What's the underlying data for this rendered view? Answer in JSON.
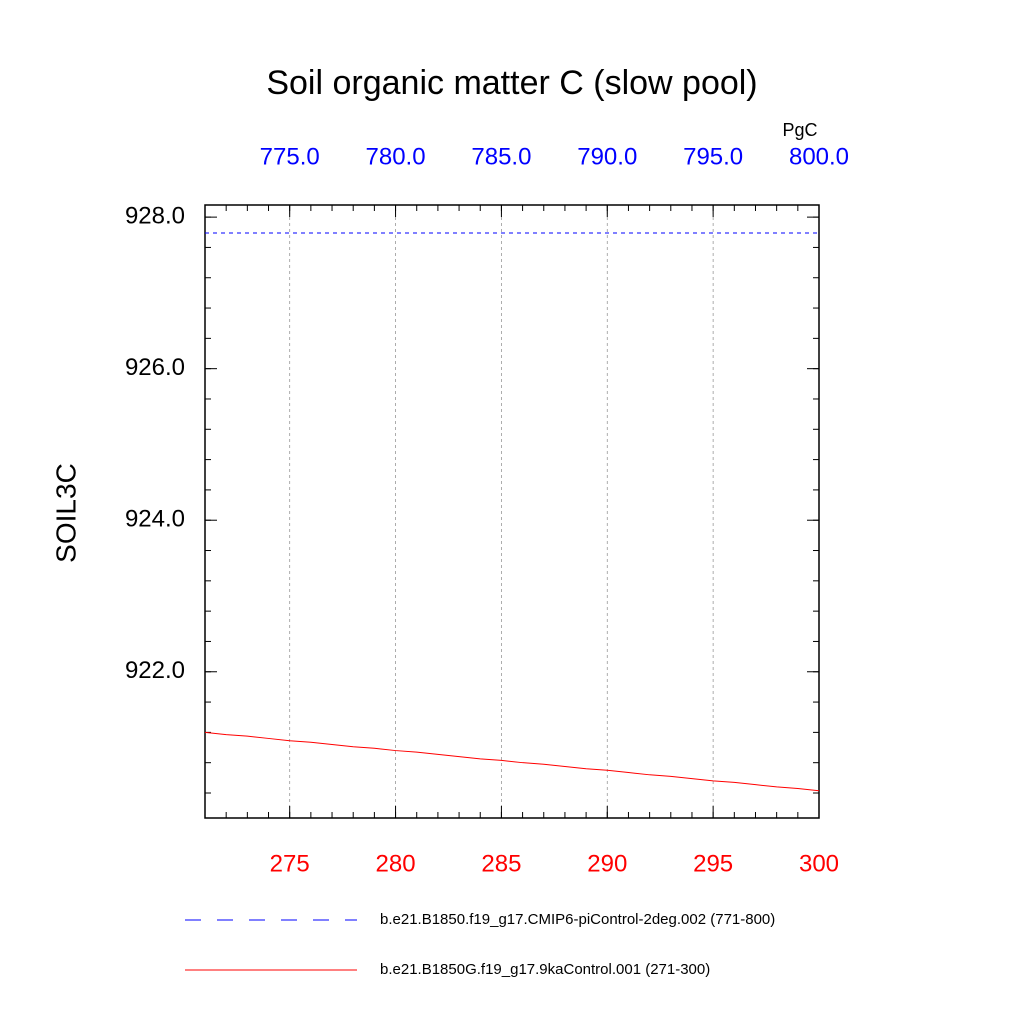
{
  "chart_data": {
    "type": "line",
    "title": "Soil organic matter C (slow pool)",
    "units": "PgC",
    "ylabel": "SOIL3C",
    "xlim": [
      271,
      300
    ],
    "xticks": [
      275,
      280,
      285,
      290,
      295,
      300
    ],
    "xtick_color": "#ff0000",
    "x2lim": [
      771,
      800
    ],
    "x2ticks": [
      {
        "value": 775,
        "label": "775.0"
      },
      {
        "value": 780,
        "label": "780.0"
      },
      {
        "value": 785,
        "label": "785.0"
      },
      {
        "value": 790,
        "label": "790.0"
      },
      {
        "value": 795,
        "label": "795.0"
      },
      {
        "value": 800,
        "label": "800.0"
      }
    ],
    "x2tick_color": "#0000ff",
    "ylim": [
      920.07,
      928.16
    ],
    "yticks": [
      {
        "value": 922,
        "label": "922.0"
      },
      {
        "value": 924,
        "label": "924.0"
      },
      {
        "value": 926,
        "label": "926.0"
      },
      {
        "value": 928,
        "label": "928.0"
      }
    ],
    "grid": true,
    "series": [
      {
        "name": "b.e21.B1850.f19_g17.CMIP6-piControl-2deg.002 (771-800)",
        "color": "#0000ff",
        "dashed": true,
        "axis": "x2",
        "x": [
          771,
          772,
          773,
          774,
          775,
          776,
          777,
          778,
          779,
          780,
          781,
          782,
          783,
          784,
          785,
          786,
          787,
          788,
          789,
          790,
          791,
          792,
          793,
          794,
          795,
          796,
          797,
          798,
          799,
          800
        ],
        "values": [
          927.79,
          927.79,
          927.79,
          927.79,
          927.79,
          927.79,
          927.79,
          927.79,
          927.79,
          927.79,
          927.79,
          927.79,
          927.79,
          927.79,
          927.79,
          927.79,
          927.79,
          927.79,
          927.79,
          927.79,
          927.79,
          927.79,
          927.79,
          927.79,
          927.79,
          927.79,
          927.79,
          927.79,
          927.79,
          927.79
        ]
      },
      {
        "name": "b.e21.B1850G.f19_g17.9kaControl.001 (271-300)",
        "color": "#ff0000",
        "dashed": false,
        "axis": "x",
        "x": [
          271,
          272,
          273,
          274,
          275,
          276,
          277,
          278,
          279,
          280,
          281,
          282,
          283,
          284,
          285,
          286,
          287,
          288,
          289,
          290,
          291,
          292,
          293,
          294,
          295,
          296,
          297,
          298,
          299,
          300
        ],
        "values": [
          921.2,
          921.17,
          921.15,
          921.12,
          921.09,
          921.07,
          921.04,
          921.01,
          920.99,
          920.96,
          920.94,
          920.91,
          920.88,
          920.85,
          920.83,
          920.8,
          920.78,
          920.75,
          920.72,
          920.7,
          920.67,
          920.64,
          920.62,
          920.59,
          920.56,
          920.54,
          920.51,
          920.48,
          920.46,
          920.43
        ]
      }
    ]
  }
}
